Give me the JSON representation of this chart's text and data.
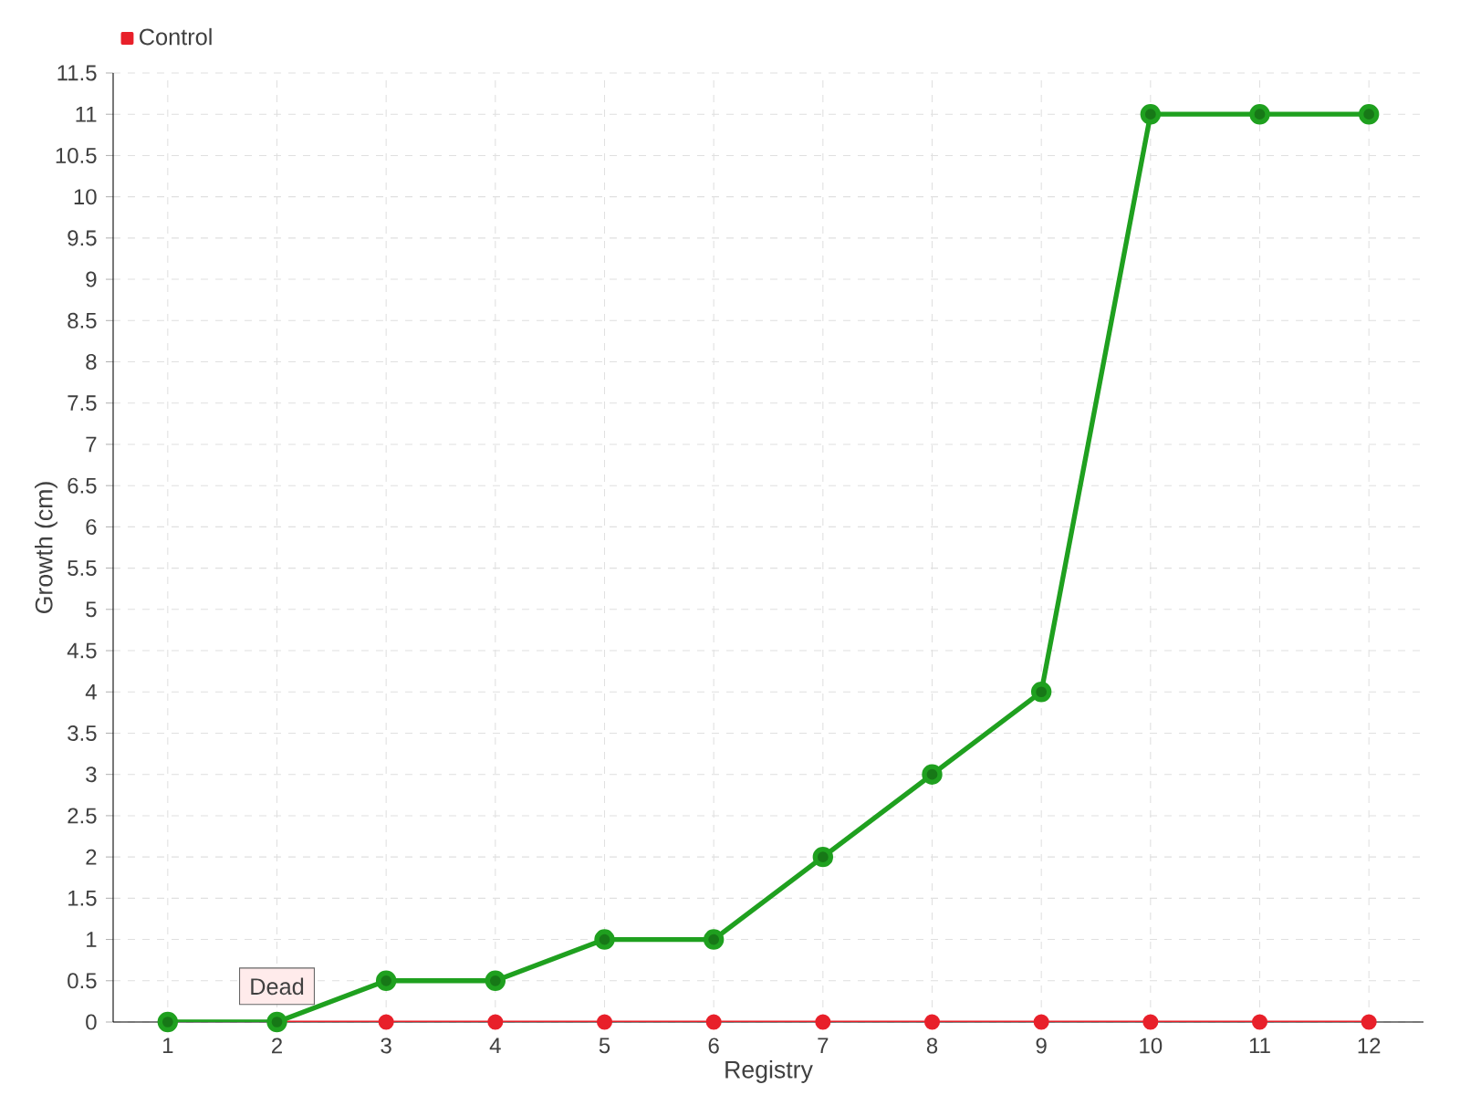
{
  "chart_data": {
    "type": "line",
    "xlabel": "Registry",
    "ylabel": "Growth (cm)",
    "categories": [
      "1",
      "2",
      "3",
      "4",
      "5",
      "6",
      "7",
      "8",
      "9",
      "10",
      "11",
      "12"
    ],
    "series": [
      {
        "color": "#1fa01f",
        "values": [
          0,
          0,
          0.5,
          0.5,
          1,
          1,
          2,
          3,
          4,
          11,
          11,
          11
        ]
      },
      {
        "name": "Control",
        "color": "#e8202a",
        "values": [
          0,
          0,
          0,
          0,
          0,
          0,
          0,
          0,
          0,
          0,
          0,
          0
        ]
      }
    ],
    "ylim": [
      0,
      11.5
    ],
    "yticks": [
      0,
      0.5,
      1,
      1.5,
      2,
      2.5,
      3,
      3.5,
      4,
      4.5,
      5,
      5.5,
      6,
      6.5,
      7,
      7.5,
      8,
      8.5,
      9,
      9.5,
      10,
      10.5,
      11,
      11.5
    ],
    "annotations": [
      {
        "text": "Dead",
        "x": "2",
        "y": 0
      }
    ],
    "grid": true,
    "legend": "top left",
    "marker": "circle",
    "line_style": "solid"
  }
}
